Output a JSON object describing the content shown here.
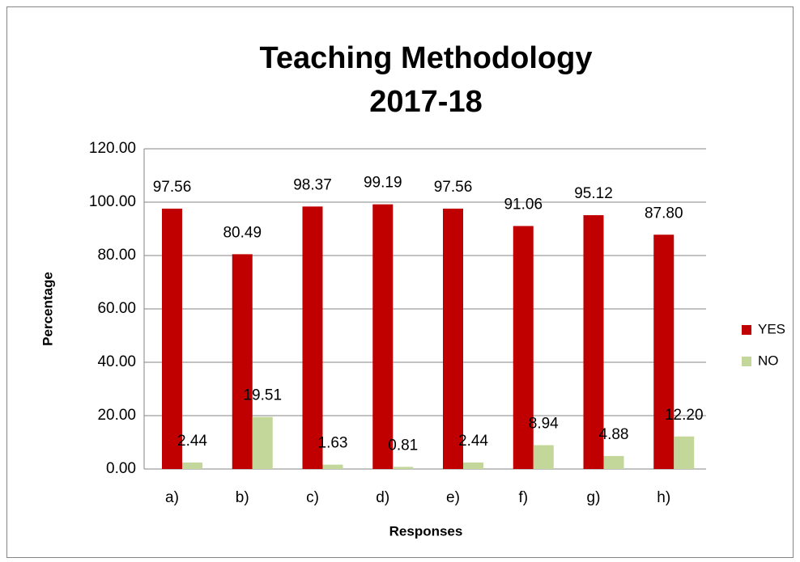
{
  "chart_data": {
    "type": "bar",
    "title": [
      "Teaching Methodology",
      "2017-18"
    ],
    "x_label": "Responses",
    "y_label": "Percentage",
    "categories": [
      "a)",
      "b)",
      "c)",
      "d)",
      "e)",
      "f)",
      "g)",
      "h)"
    ],
    "series": [
      {
        "name": "YES",
        "color": "#c00000",
        "values": [
          97.56,
          80.49,
          98.37,
          99.19,
          97.56,
          91.06,
          95.12,
          87.8
        ],
        "value_labels": [
          "97.56",
          "80.49",
          "98.37",
          "99.19",
          "97.56",
          "91.06",
          "95.12",
          "87.80"
        ]
      },
      {
        "name": "NO",
        "color": "#c4d79b",
        "values": [
          2.44,
          19.51,
          1.63,
          0.81,
          2.44,
          8.94,
          4.88,
          12.2
        ],
        "value_labels": [
          "2.44",
          "19.51",
          "1.63",
          "0.81",
          "2.44",
          "8.94",
          "4.88",
          "12.20"
        ]
      }
    ],
    "ylim": [
      0,
      120
    ],
    "yticks": [
      {
        "value": 0,
        "label": "0.00"
      },
      {
        "value": 20,
        "label": "20.00"
      },
      {
        "value": 40,
        "label": "40.00"
      },
      {
        "value": 60,
        "label": "60.00"
      },
      {
        "value": 80,
        "label": "80.00"
      },
      {
        "value": 100,
        "label": "100.00"
      },
      {
        "value": 120,
        "label": "120.00"
      }
    ],
    "grid": true,
    "legend": "right"
  }
}
